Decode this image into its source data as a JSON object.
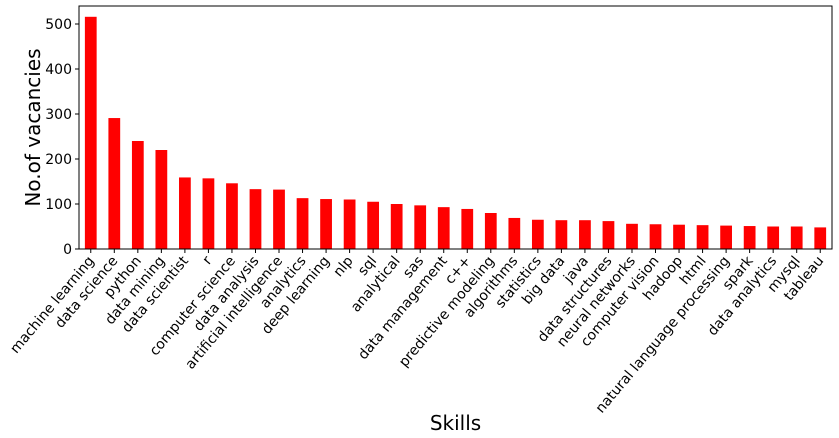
{
  "chart_data": {
    "type": "bar",
    "xlabel": "Skills",
    "ylabel": "No.of vacancies",
    "ylim": [
      0,
      540
    ],
    "yticks": [
      0,
      100,
      200,
      300,
      400,
      500
    ],
    "bar_color": "#ff0000",
    "grid": false,
    "categories": [
      "machine learning",
      "data science",
      "python",
      "data mining",
      "data scientist",
      "r",
      "computer science",
      "data analysis",
      "artificial intelligence",
      "analytics",
      "deep learning",
      "nlp",
      "sql",
      "analytical",
      "sas",
      "data management",
      "c++",
      "predictive modeling",
      "algorithms",
      "statistics",
      "big data",
      "java",
      "data structures",
      "neural networks",
      "computer vision",
      "hadoop",
      "html",
      "natural language processing",
      "spark",
      "data analytics",
      "mysql",
      "tableau"
    ],
    "values": [
      516,
      291,
      240,
      220,
      159,
      157,
      146,
      133,
      132,
      113,
      111,
      110,
      105,
      100,
      97,
      93,
      89,
      80,
      69,
      65,
      64,
      64,
      62,
      56,
      55,
      54,
      53,
      52,
      51,
      50,
      50,
      48
    ]
  }
}
